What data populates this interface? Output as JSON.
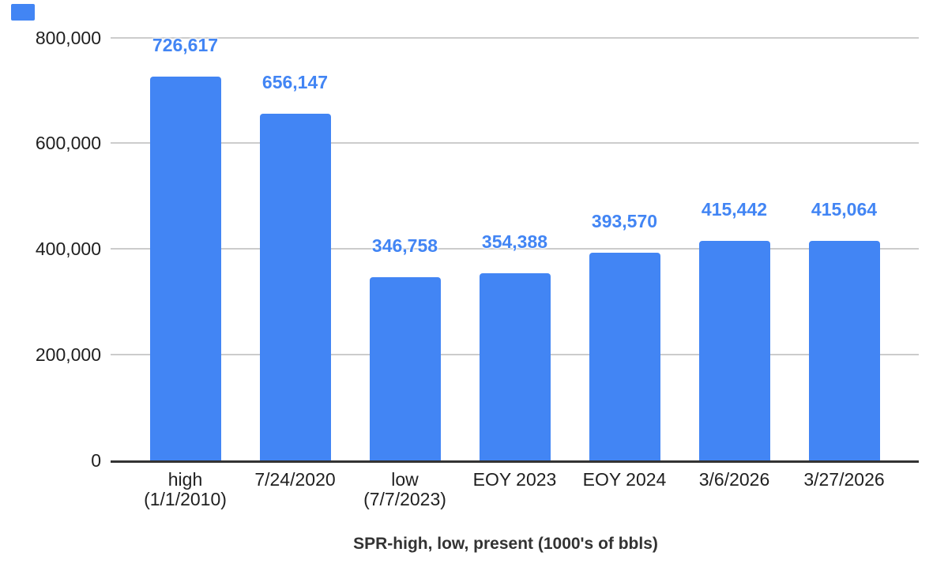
{
  "chart_data": {
    "type": "bar",
    "title": "SPR-high, low, present (1000's of bbls)",
    "categories": [
      [
        "high",
        "(1/1/2010)"
      ],
      [
        "7/24/2020"
      ],
      [
        "low",
        "(7/7/2023)"
      ],
      [
        "EOY 2023"
      ],
      [
        "EOY 2024"
      ],
      [
        "3/6/2026"
      ],
      [
        "3/27/2026"
      ]
    ],
    "values": [
      726617,
      656147,
      346758,
      354388,
      393570,
      415442,
      415064
    ],
    "data_labels": [
      "726,617",
      "656,147",
      "346,758",
      "354,388",
      "393,570",
      "415,442",
      "415,064"
    ],
    "y_ticks": [
      {
        "value": 0,
        "label": "0"
      },
      {
        "value": 200000,
        "label": "200,000"
      },
      {
        "value": 400000,
        "label": "400,000"
      },
      {
        "value": 600000,
        "label": "600,000"
      },
      {
        "value": 800000,
        "label": "800,000"
      }
    ],
    "ylim": [
      0,
      800000
    ],
    "xlabel": "",
    "ylabel": "",
    "grid": true,
    "legend_position": "none",
    "bar_color": "#4285F4",
    "data_label_color": "#4285F4",
    "axis_text_color": "#1f1f1f",
    "grid_color": "#cccccc",
    "baseline_color": "#333333",
    "title_color": "#333333",
    "background_color": "#ffffff"
  },
  "decorations": {
    "corner_chip_color": "#4285F4"
  }
}
